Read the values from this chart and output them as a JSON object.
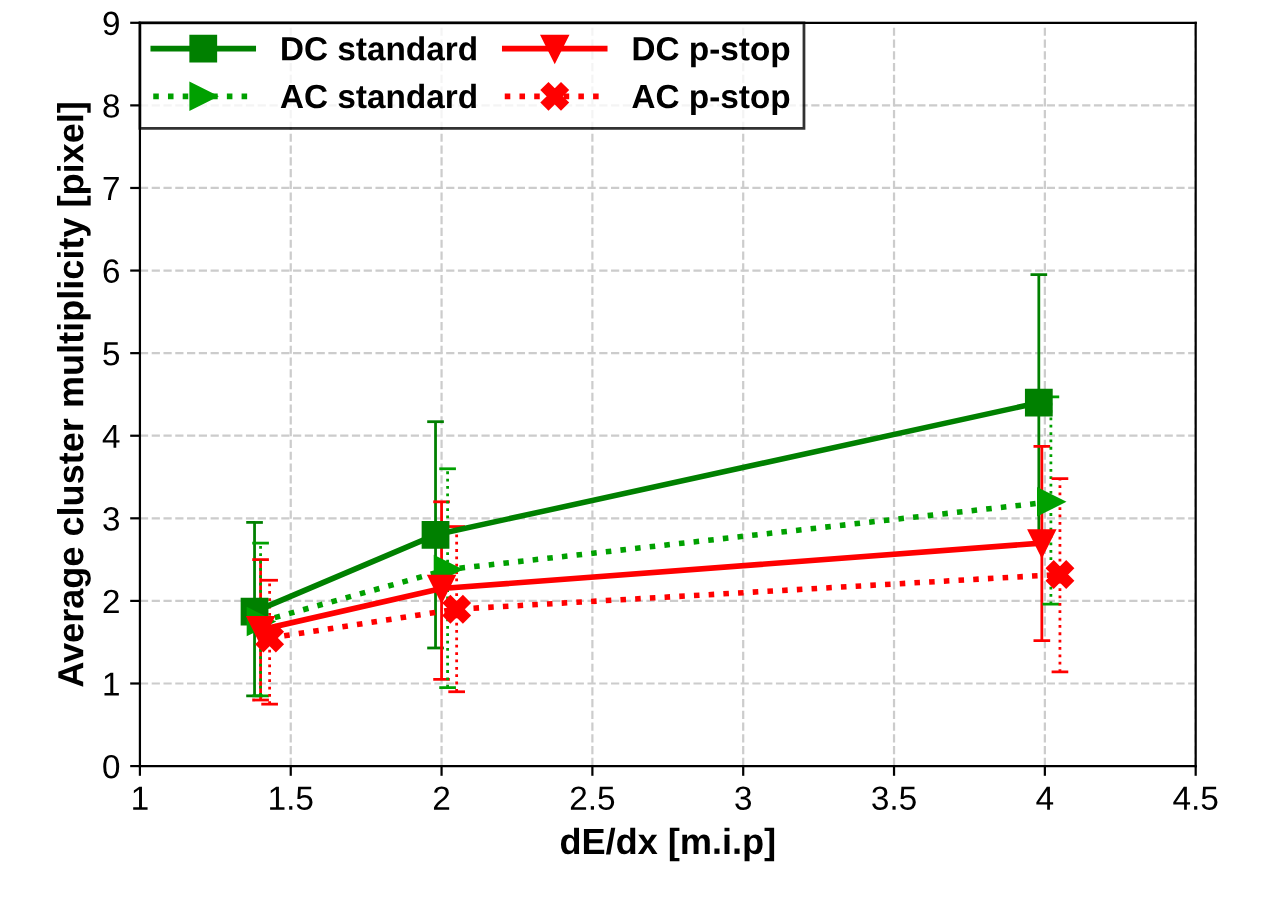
{
  "chart_data": {
    "type": "line",
    "xlabel": "dE/dx [m.i.p]",
    "ylabel": "Average cluster multiplicity [pixel]",
    "xlim": [
      1,
      4.5
    ],
    "xticks": [
      1,
      1.5,
      2,
      2.5,
      3,
      3.5,
      4,
      4.5
    ],
    "ylim": [
      0,
      9
    ],
    "yticks": [
      0,
      1,
      2,
      3,
      4,
      5,
      6,
      7,
      8,
      9
    ],
    "grid": true,
    "legend": "top left",
    "series": [
      {
        "name": "DC standard",
        "color": "#008000",
        "marker": "square",
        "line_style": "solid",
        "x": [
          1.38,
          1.98,
          3.98
        ],
        "values": [
          1.87,
          2.8,
          4.4
        ],
        "errors": [
          [
            0.85,
            2.95
          ],
          [
            1.43,
            4.17
          ],
          [
            2.83,
            5.95
          ]
        ]
      },
      {
        "name": "DC p-stop",
        "color": "#ff0000",
        "marker": "triangle",
        "line_style": "solid",
        "x": [
          1.4,
          2.0,
          3.99
        ],
        "values": [
          1.65,
          2.15,
          2.7
        ],
        "errors": [
          [
            0.8,
            2.5
          ],
          [
            1.05,
            3.2
          ],
          [
            1.52,
            3.87
          ]
        ]
      },
      {
        "name": "AC standard",
        "color": "#00a000",
        "marker": "triangle",
        "line_style": "dotted",
        "x": [
          1.4,
          2.02,
          4.02
        ],
        "values": [
          1.75,
          2.38,
          3.2
        ],
        "errors": [
          [
            0.85,
            2.7
          ],
          [
            0.95,
            3.6
          ],
          [
            1.96,
            4.47
          ]
        ]
      },
      {
        "name": "AC p-stop",
        "color": "#ff0000",
        "marker": "cross",
        "line_style": "dotted",
        "x": [
          1.43,
          2.05,
          4.05
        ],
        "values": [
          1.55,
          1.9,
          2.32
        ],
        "errors": [
          [
            0.75,
            2.25
          ],
          [
            0.9,
            2.9
          ],
          [
            1.14,
            3.48
          ]
        ]
      }
    ]
  }
}
